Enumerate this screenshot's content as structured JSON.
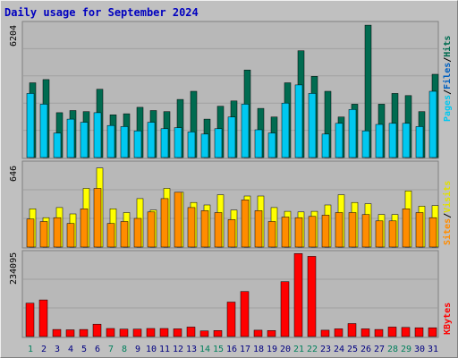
{
  "title": "Daily usage for September 2024",
  "colors": {
    "hits": "#006b50",
    "files": "#00c8f0",
    "visits": "#ffff00",
    "sites": "#ff8c00",
    "kbytes": "#ff0000",
    "weekend_label": "#00805c",
    "weekday_label": "#000080"
  },
  "chart_data": [
    {
      "type": "bar",
      "panel": "hits-files",
      "ymax_label": "6204",
      "ylim": [
        0,
        6204
      ],
      "legend": [
        "Pages",
        "/",
        "Files",
        "/",
        "Hits"
      ],
      "categories": [
        "1",
        "2",
        "3",
        "4",
        "5",
        "6",
        "7",
        "8",
        "9",
        "10",
        "11",
        "12",
        "13",
        "14",
        "15",
        "16",
        "17",
        "18",
        "19",
        "20",
        "21",
        "22",
        "23",
        "24",
        "25",
        "26",
        "27",
        "28",
        "29",
        "30",
        "31"
      ],
      "weekend_days": [
        "1",
        "7",
        "8",
        "14",
        "15",
        "21",
        "22",
        "28",
        "29"
      ],
      "series": [
        {
          "name": "Hits",
          "values": [
            3500,
            3650,
            2100,
            2200,
            2150,
            3200,
            2000,
            2050,
            2350,
            2200,
            2150,
            2720,
            3100,
            1800,
            2400,
            2650,
            4100,
            2300,
            1900,
            3500,
            5000,
            3800,
            3100,
            1900,
            2500,
            6200,
            2500,
            3000,
            2900,
            2150,
            3900
          ]
        },
        {
          "name": "Files",
          "values": [
            3000,
            2500,
            1150,
            1800,
            1650,
            2100,
            1500,
            1450,
            1250,
            1650,
            1350,
            1400,
            1200,
            1100,
            1350,
            1900,
            2500,
            1300,
            1150,
            2550,
            3400,
            3000,
            1100,
            1600,
            2250,
            1250,
            1550,
            1600,
            1600,
            1450,
            3100
          ]
        }
      ]
    },
    {
      "type": "bar",
      "panel": "visits-sites",
      "ymax_label": "646",
      "ylim": [
        0,
        646
      ],
      "legend": [
        "Sites",
        "/",
        "Visits"
      ],
      "categories": [
        "1",
        "2",
        "3",
        "4",
        "5",
        "6",
        "7",
        "8",
        "9",
        "10",
        "11",
        "12",
        "13",
        "14",
        "15",
        "16",
        "17",
        "18",
        "19",
        "20",
        "21",
        "22",
        "23",
        "24",
        "25",
        "26",
        "27",
        "28",
        "29",
        "30",
        "31"
      ],
      "series": [
        {
          "name": "Visits",
          "values": [
            300,
            230,
            310,
            260,
            460,
            620,
            300,
            270,
            380,
            290,
            460,
            430,
            350,
            330,
            410,
            290,
            400,
            400,
            310,
            280,
            275,
            280,
            330,
            410,
            350,
            340,
            255,
            255,
            440,
            320,
            325
          ]
        },
        {
          "name": "Sites",
          "values": [
            220,
            200,
            230,
            185,
            300,
            460,
            185,
            200,
            225,
            275,
            380,
            430,
            310,
            285,
            270,
            215,
            370,
            285,
            200,
            235,
            230,
            240,
            250,
            270,
            270,
            255,
            205,
            205,
            300,
            270,
            230
          ]
        }
      ]
    },
    {
      "type": "bar",
      "panel": "kbytes",
      "ymax_label": "234095",
      "ylim": [
        0,
        234095
      ],
      "legend": [
        "KBytes"
      ],
      "categories": [
        "1",
        "2",
        "3",
        "4",
        "5",
        "6",
        "7",
        "8",
        "9",
        "10",
        "11",
        "12",
        "13",
        "14",
        "15",
        "16",
        "17",
        "18",
        "19",
        "20",
        "21",
        "22",
        "23",
        "24",
        "25",
        "26",
        "27",
        "28",
        "29",
        "30",
        "31"
      ],
      "series": [
        {
          "name": "KBytes",
          "values": [
            95000,
            104000,
            20000,
            19000,
            20000,
            35000,
            23000,
            21000,
            21000,
            23000,
            23000,
            22000,
            27000,
            16000,
            17000,
            98000,
            128000,
            18000,
            17000,
            156000,
            236000,
            228000,
            18000,
            22000,
            37000,
            22000,
            20000,
            27000,
            26000,
            25000,
            25000
          ]
        }
      ]
    }
  ]
}
